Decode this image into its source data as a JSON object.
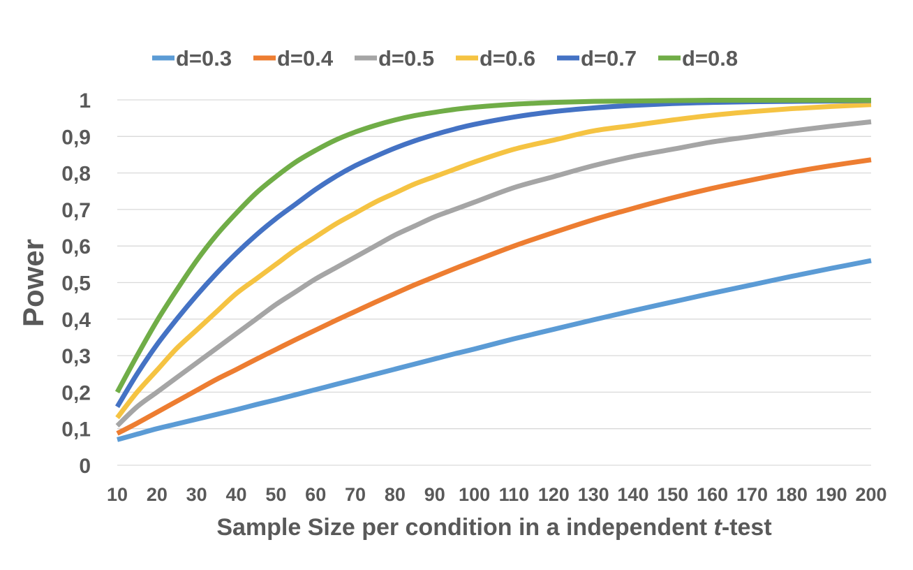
{
  "chart_data": {
    "type": "line",
    "xlabel": "Sample Size per condition in a independent t-test",
    "xlabel_parts": {
      "before": "Sample Size per condition in a independent ",
      "italic": "t",
      "after": "-test"
    },
    "ylabel": "Power",
    "xlim": [
      10,
      200
    ],
    "ylim": [
      0,
      1
    ],
    "x_ticks": [
      "10",
      "20",
      "30",
      "40",
      "50",
      "60",
      "70",
      "80",
      "90",
      "100",
      "110",
      "120",
      "130",
      "140",
      "150",
      "160",
      "170",
      "180",
      "190",
      "200"
    ],
    "y_ticks": [
      "0",
      "0,1",
      "0,2",
      "0,3",
      "0,4",
      "0,5",
      "0,6",
      "0,7",
      "0,8",
      "0,9",
      "1"
    ],
    "grid": "horizontal",
    "legend_position": "top",
    "x": [
      10,
      15,
      20,
      25,
      30,
      35,
      40,
      45,
      50,
      55,
      60,
      65,
      70,
      75,
      80,
      85,
      90,
      95,
      100,
      110,
      120,
      130,
      140,
      150,
      160,
      170,
      180,
      190,
      200
    ],
    "series": [
      {
        "name": "d=0.3",
        "color": "#5B9BD5",
        "values": [
          0.07,
          0.085,
          0.1,
          0.113,
          0.126,
          0.139,
          0.152,
          0.166,
          0.179,
          0.193,
          0.207,
          0.221,
          0.235,
          0.249,
          0.263,
          0.277,
          0.291,
          0.305,
          0.318,
          0.346,
          0.372,
          0.398,
          0.423,
          0.447,
          0.471,
          0.494,
          0.517,
          0.539,
          0.56
        ]
      },
      {
        "name": "d=0.4",
        "color": "#ED7D31",
        "values": [
          0.087,
          0.115,
          0.145,
          0.175,
          0.205,
          0.235,
          0.262,
          0.29,
          0.317,
          0.344,
          0.37,
          0.396,
          0.421,
          0.446,
          0.47,
          0.494,
          0.516,
          0.538,
          0.559,
          0.6,
          0.637,
          0.672,
          0.703,
          0.732,
          0.758,
          0.781,
          0.802,
          0.82,
          0.836
        ]
      },
      {
        "name": "d=0.5",
        "color": "#A5A5A5",
        "values": [
          0.108,
          0.16,
          0.2,
          0.24,
          0.28,
          0.32,
          0.36,
          0.4,
          0.44,
          0.475,
          0.51,
          0.54,
          0.57,
          0.6,
          0.63,
          0.655,
          0.68,
          0.7,
          0.72,
          0.76,
          0.79,
          0.82,
          0.845,
          0.865,
          0.885,
          0.9,
          0.915,
          0.928,
          0.94
        ]
      },
      {
        "name": "d=0.6",
        "color": "#F5C342",
        "values": [
          0.13,
          0.2,
          0.26,
          0.32,
          0.37,
          0.42,
          0.47,
          0.51,
          0.55,
          0.59,
          0.625,
          0.66,
          0.69,
          0.72,
          0.745,
          0.77,
          0.79,
          0.81,
          0.83,
          0.865,
          0.89,
          0.915,
          0.93,
          0.945,
          0.958,
          0.968,
          0.976,
          0.982,
          0.987
        ]
      },
      {
        "name": "d=0.7",
        "color": "#4472C4",
        "values": [
          0.16,
          0.25,
          0.33,
          0.4,
          0.465,
          0.525,
          0.58,
          0.63,
          0.675,
          0.715,
          0.755,
          0.79,
          0.82,
          0.845,
          0.868,
          0.888,
          0.905,
          0.92,
          0.933,
          0.953,
          0.968,
          0.978,
          0.985,
          0.99,
          0.993,
          0.995,
          0.996,
          0.997,
          0.998
        ]
      },
      {
        "name": "d=0.8",
        "color": "#70AD47",
        "values": [
          0.2,
          0.3,
          0.395,
          0.48,
          0.56,
          0.63,
          0.69,
          0.745,
          0.79,
          0.83,
          0.862,
          0.89,
          0.912,
          0.93,
          0.945,
          0.957,
          0.966,
          0.974,
          0.98,
          0.988,
          0.993,
          0.996,
          0.997,
          0.998,
          0.999,
          0.999,
          0.999,
          0.999,
          0.999
        ]
      }
    ]
  }
}
